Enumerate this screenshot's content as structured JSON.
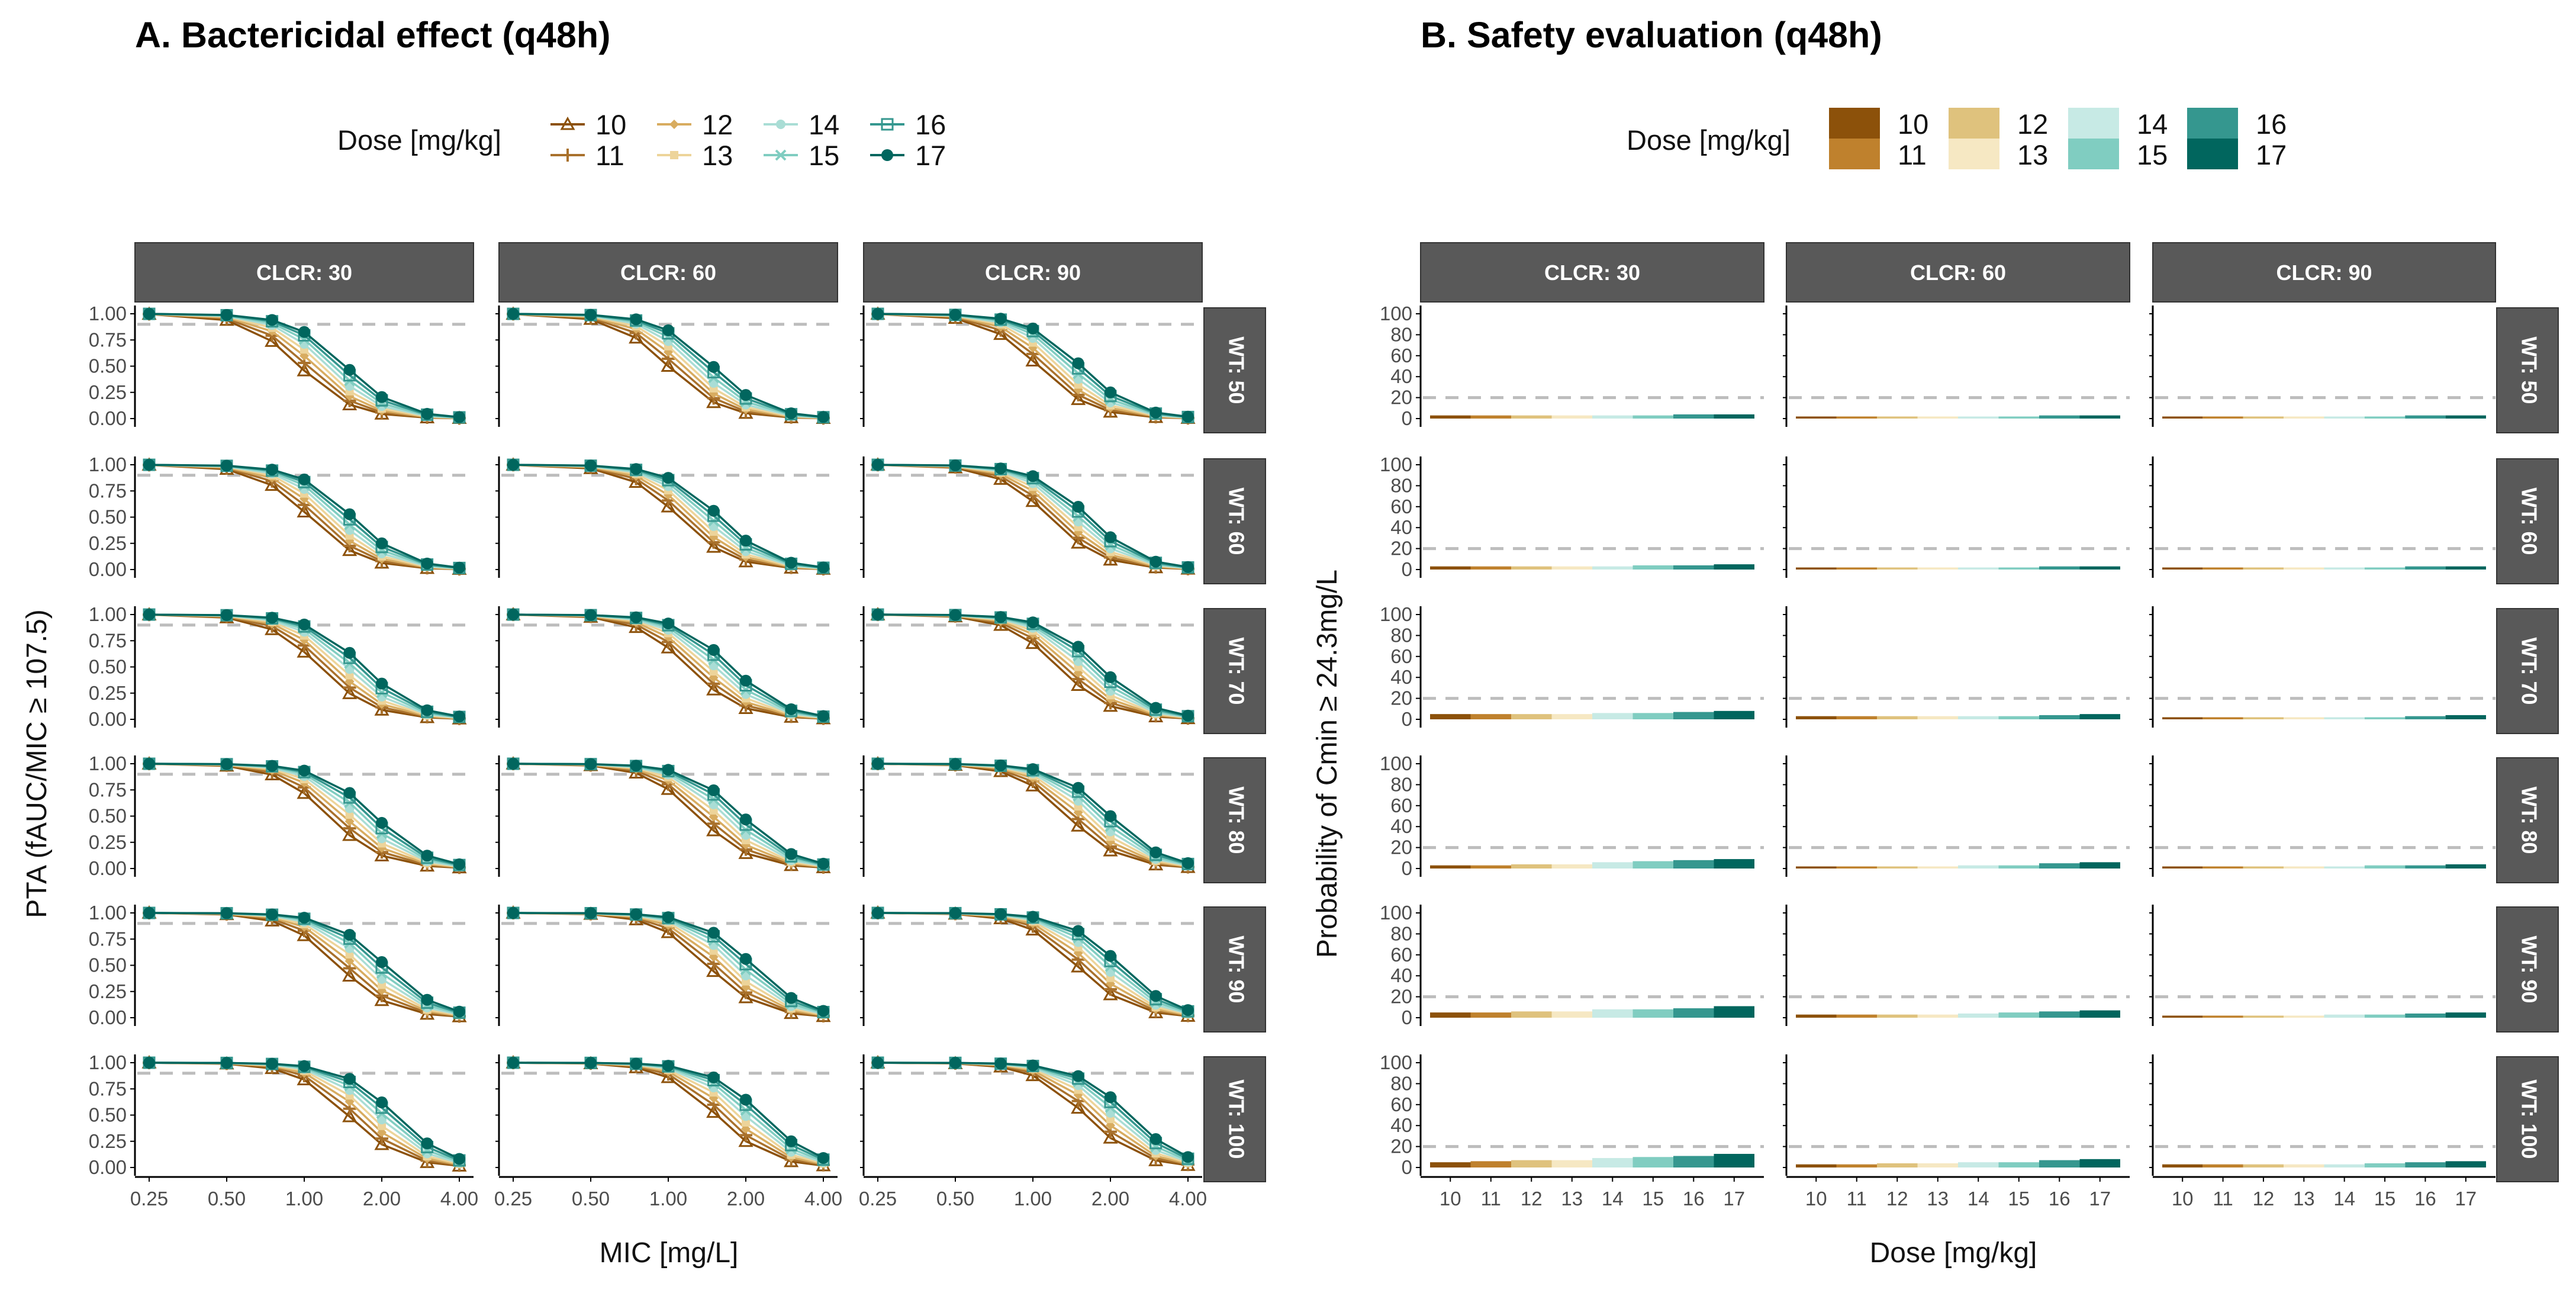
{
  "chart_data": [
    {
      "panel": "A",
      "type": "line",
      "title": "A. Bactericidal effect (q48h)",
      "xlabel": "MIC [mg/L]",
      "ylabel": "PTA (fAUC/MIC ≥ 107.5)",
      "x_scale": "log2",
      "x": [
        0.25,
        0.5,
        0.75,
        1.0,
        1.5,
        2.0,
        3.0,
        4.0
      ],
      "xticks": [
        0.25,
        0.5,
        1.0,
        2.0,
        4.0
      ],
      "xtick_labels": [
        "0.25",
        "0.50",
        "1.00",
        "2.00",
        "4.00"
      ],
      "yticks": [
        0.0,
        0.25,
        0.5,
        0.75,
        1.0
      ],
      "ytick_labels": [
        "0.00",
        "0.25",
        "0.50",
        "0.75",
        "1.00"
      ],
      "ylim": [
        0,
        1
      ],
      "target_line": 0.9,
      "legend_title": "Dose [mg/kg]",
      "series_names": [
        "10",
        "11",
        "12",
        "13",
        "14",
        "15",
        "16",
        "17"
      ],
      "markers": [
        "triangle",
        "plus",
        "diamond",
        "square",
        "circle",
        "cross",
        "square-open",
        "circle-filled"
      ],
      "facet_cols": [
        "CLCR: 30",
        "CLCR: 60",
        "CLCR: 90"
      ],
      "facet_rows": [
        "WT: 50",
        "WT: 60",
        "WT: 70",
        "WT: 80",
        "WT: 90",
        "WT: 100"
      ],
      "midpoints": [
        [
          [
            0.96,
            1.03,
            1.1,
            1.17,
            1.24,
            1.31,
            1.38,
            1.45
          ],
          [
            1.0,
            1.07,
            1.14,
            1.21,
            1.28,
            1.35,
            1.42,
            1.49
          ],
          [
            1.05,
            1.12,
            1.19,
            1.26,
            1.33,
            1.4,
            1.47,
            1.54
          ]
        ],
        [
          [
            1.05,
            1.12,
            1.19,
            1.26,
            1.33,
            1.4,
            1.47,
            1.54
          ],
          [
            1.1,
            1.17,
            1.24,
            1.31,
            1.38,
            1.45,
            1.52,
            1.59
          ],
          [
            1.16,
            1.23,
            1.3,
            1.37,
            1.44,
            1.51,
            1.58,
            1.65
          ]
        ],
        [
          [
            1.15,
            1.23,
            1.31,
            1.39,
            1.47,
            1.55,
            1.63,
            1.71
          ],
          [
            1.2,
            1.28,
            1.36,
            1.44,
            1.52,
            1.6,
            1.68,
            1.76
          ],
          [
            1.26,
            1.34,
            1.42,
            1.5,
            1.58,
            1.66,
            1.74,
            1.82
          ]
        ],
        [
          [
            1.25,
            1.34,
            1.43,
            1.52,
            1.61,
            1.7,
            1.79,
            1.88
          ],
          [
            1.31,
            1.4,
            1.49,
            1.58,
            1.67,
            1.76,
            1.85,
            1.94
          ],
          [
            1.37,
            1.46,
            1.55,
            1.64,
            1.73,
            1.82,
            1.91,
            2.0
          ]
        ],
        [
          [
            1.36,
            1.46,
            1.56,
            1.66,
            1.76,
            1.86,
            1.96,
            2.06
          ],
          [
            1.42,
            1.52,
            1.62,
            1.72,
            1.82,
            1.92,
            2.02,
            2.12
          ],
          [
            1.48,
            1.58,
            1.68,
            1.78,
            1.88,
            1.98,
            2.08,
            2.18
          ]
        ],
        [
          [
            1.48,
            1.59,
            1.7,
            1.81,
            1.92,
            2.03,
            2.14,
            2.25
          ],
          [
            1.54,
            1.65,
            1.76,
            1.87,
            1.98,
            2.09,
            2.2,
            2.31
          ],
          [
            1.6,
            1.71,
            1.82,
            1.93,
            2.04,
            2.15,
            2.26,
            2.37
          ]
        ]
      ],
      "slope": 4.2
    },
    {
      "panel": "B",
      "type": "bar",
      "title": "B. Safety evaluation (q48h)",
      "xlabel": "Dose [mg/kg]",
      "ylabel": "Probability of Cmin ≥ 24.3mg/L",
      "categories": [
        "10",
        "11",
        "12",
        "13",
        "14",
        "15",
        "16",
        "17"
      ],
      "yticks": [
        0,
        20,
        40,
        60,
        80,
        100
      ],
      "ytick_labels": [
        "0",
        "20",
        "40",
        "60",
        "80",
        "100"
      ],
      "ylim": [
        0,
        100
      ],
      "target_line": 20,
      "legend_title": "Dose [mg/kg]",
      "facet_cols": [
        "CLCR: 30",
        "CLCR: 60",
        "CLCR: 90"
      ],
      "facet_rows": [
        "WT: 50",
        "WT: 60",
        "WT: 70",
        "WT: 80",
        "WT: 90",
        "WT: 100"
      ],
      "values": [
        [
          [
            3,
            3,
            3,
            3,
            3,
            3,
            4,
            4
          ],
          [
            2,
            2,
            2,
            2,
            2,
            2,
            3,
            3
          ],
          [
            2,
            2,
            2,
            2,
            2,
            2,
            3,
            3
          ]
        ],
        [
          [
            3,
            3,
            3,
            3,
            3,
            4,
            4,
            5
          ],
          [
            2,
            2,
            2,
            2,
            2,
            2,
            3,
            3
          ],
          [
            2,
            2,
            2,
            2,
            2,
            2,
            3,
            3
          ]
        ],
        [
          [
            5,
            5,
            5,
            5,
            6,
            6,
            7,
            8
          ],
          [
            3,
            3,
            3,
            3,
            3,
            3,
            4,
            5
          ],
          [
            2,
            2,
            2,
            2,
            2,
            2,
            3,
            4
          ]
        ],
        [
          [
            3,
            3,
            4,
            4,
            6,
            7,
            8,
            9
          ],
          [
            2,
            2,
            2,
            2,
            3,
            3,
            5,
            6
          ],
          [
            2,
            2,
            2,
            2,
            2,
            3,
            3,
            4
          ]
        ],
        [
          [
            5,
            5,
            6,
            6,
            8,
            8,
            9,
            11
          ],
          [
            3,
            3,
            3,
            3,
            4,
            5,
            6,
            7
          ],
          [
            2,
            2,
            2,
            2,
            3,
            3,
            4,
            5
          ]
        ],
        [
          [
            5,
            6,
            7,
            7,
            9,
            10,
            11,
            13
          ],
          [
            3,
            3,
            4,
            4,
            5,
            5,
            7,
            8
          ],
          [
            3,
            3,
            3,
            3,
            3,
            4,
            5,
            6
          ]
        ]
      ]
    }
  ],
  "colors": {
    "series": [
      "#8C510A",
      "#BF812D",
      "#DFC27D",
      "#F6E8C3",
      "#C7EAE5",
      "#80CDC1",
      "#35978F",
      "#01665E"
    ],
    "line_series": [
      "#8C510A",
      "#A9712C",
      "#D8AC60",
      "#EDD49A",
      "#A9DDD5",
      "#80CDC1",
      "#35978F",
      "#01665E"
    ],
    "strip_fill": "#595959",
    "target_line": "#BDBDBD",
    "axis": "#000000"
  }
}
